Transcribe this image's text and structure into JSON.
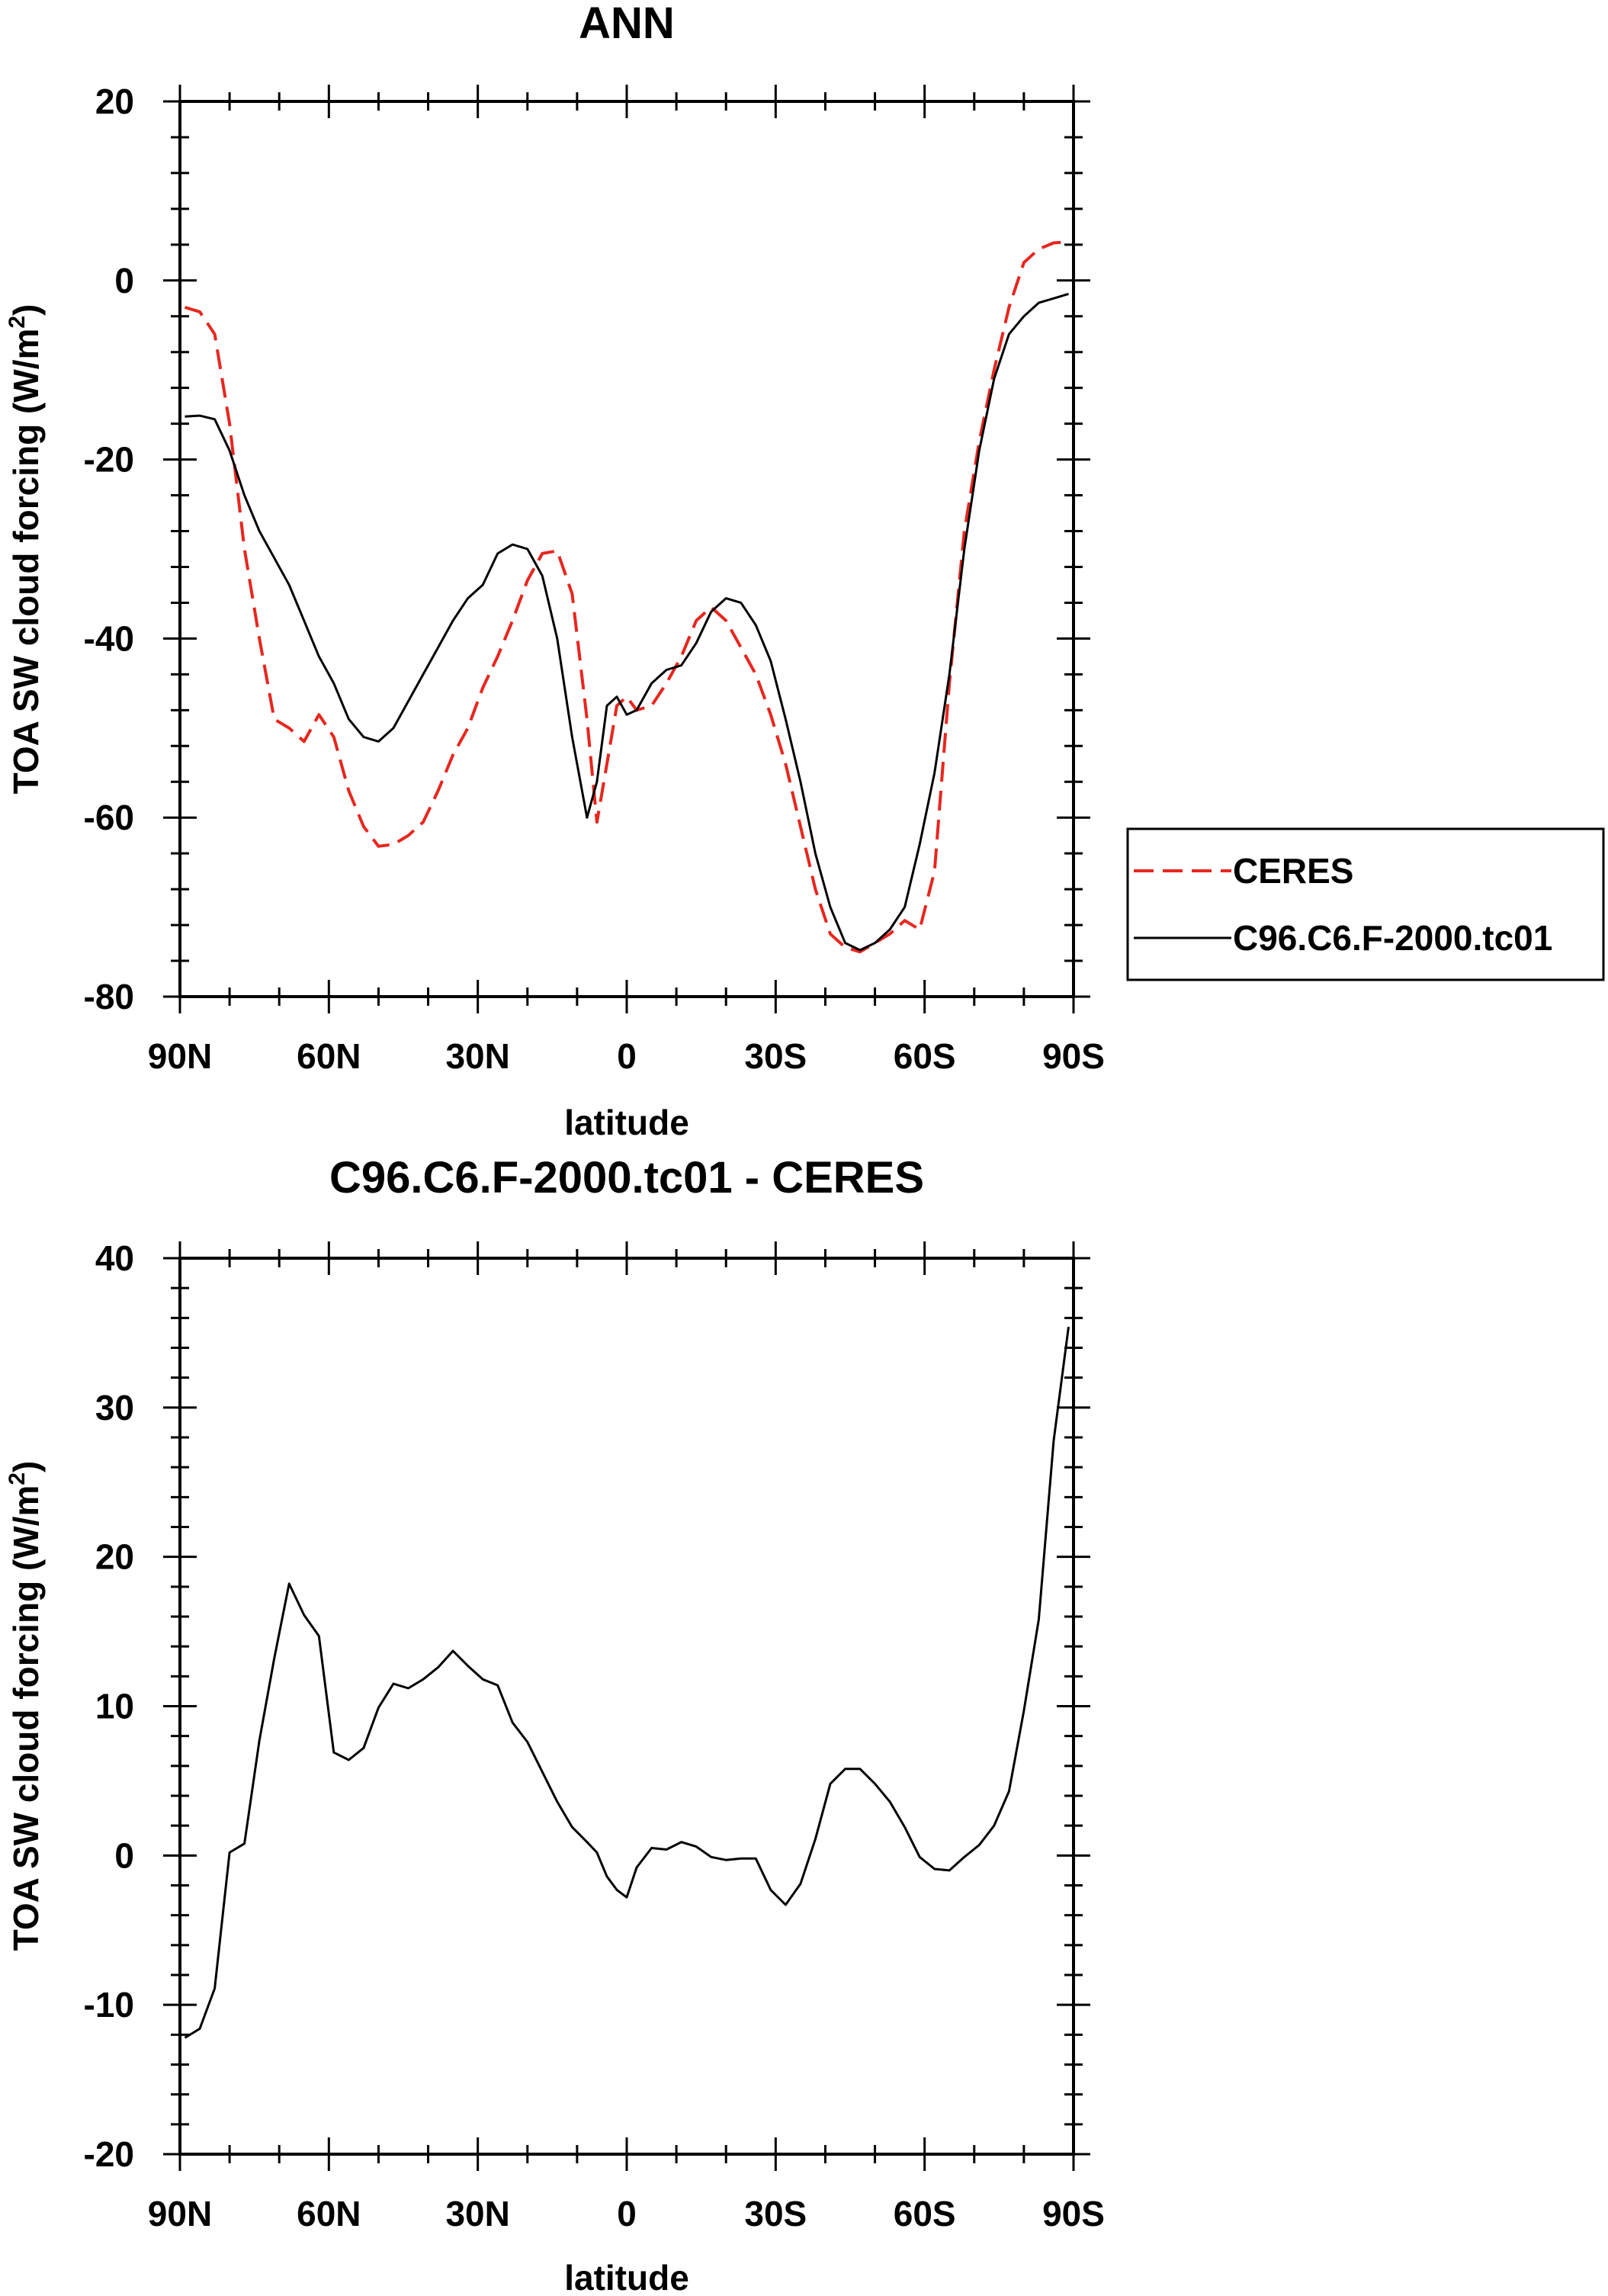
{
  "chart_data": [
    {
      "type": "line",
      "title": "ANN",
      "xlabel": "latitude",
      "ylabel": "TOA SW cloud forcing (W/m",
      "ylabel_superscript": "2",
      "ylabel_suffix": ")",
      "xlim": [
        -90,
        90
      ],
      "ylim": [
        -80,
        20
      ],
      "x_ticks": [
        -90,
        -60,
        -30,
        0,
        30,
        60,
        90
      ],
      "x_tick_labels": [
        "90N",
        "60N",
        "30N",
        "0",
        "30S",
        "60S",
        "90S"
      ],
      "y_ticks": [
        -80,
        -60,
        -40,
        -20,
        0,
        20
      ],
      "y_tick_labels": [
        "-80",
        "-60",
        "-40",
        "-20",
        "0",
        "20"
      ],
      "legend": {
        "placement": "right",
        "entries": [
          "CERES",
          "C96.C6.F-2000.tc01"
        ]
      },
      "series": [
        {
          "name": "CERES",
          "color": "#e8261e",
          "style": "dashed",
          "x": [
            -89,
            -86,
            -83,
            -80,
            -77,
            -74,
            -71,
            -68,
            -65,
            -62,
            -59,
            -56,
            -53,
            -50,
            -47,
            -44,
            -41,
            -38,
            -35,
            -32,
            -29,
            -26,
            -23,
            -20,
            -17,
            -14,
            -11,
            -8,
            -6,
            -4,
            -2,
            0,
            2,
            5,
            8,
            11,
            14,
            17,
            20,
            23,
            26,
            29,
            32,
            35,
            38,
            41,
            44,
            47,
            50,
            53,
            56,
            59,
            62,
            65,
            68,
            71,
            74,
            77,
            80,
            83,
            86,
            89
          ],
          "values": [
            -3,
            -3.5,
            -6,
            -16,
            -30,
            -40,
            -49,
            -50,
            -51.5,
            -48.5,
            -51,
            -57,
            -61,
            -63.2,
            -63,
            -62,
            -60.5,
            -57,
            -53,
            -50,
            -45.5,
            -42,
            -38,
            -33.5,
            -30.5,
            -30.2,
            -35,
            -49,
            -60.5,
            -54,
            -47.5,
            -46.5,
            -48,
            -47.5,
            -45,
            -42,
            -38,
            -36.5,
            -38,
            -41,
            -44,
            -48.5,
            -54,
            -61,
            -68,
            -73,
            -74.5,
            -75,
            -74,
            -73,
            -71.5,
            -72.5,
            -66,
            -45,
            -28,
            -18,
            -10,
            -3,
            2,
            3.5,
            4.2,
            4.3
          ]
        },
        {
          "name": "C96.C6.F-2000.tc01",
          "color": "#000000",
          "style": "solid",
          "x": [
            -89,
            -86,
            -83,
            -80,
            -77,
            -74,
            -71,
            -68,
            -65,
            -62,
            -59,
            -56,
            -53,
            -50,
            -47,
            -44,
            -41,
            -38,
            -35,
            -32,
            -29,
            -26,
            -23,
            -20,
            -17,
            -14,
            -11,
            -8,
            -6,
            -4,
            -2,
            0,
            2,
            5,
            8,
            11,
            14,
            17,
            20,
            23,
            26,
            29,
            32,
            35,
            38,
            41,
            44,
            47,
            50,
            53,
            56,
            59,
            62,
            65,
            68,
            71,
            74,
            77,
            80,
            83,
            86,
            89
          ],
          "values": [
            -15.2,
            -15.1,
            -15.5,
            -19,
            -24,
            -28,
            -31,
            -34,
            -38,
            -42,
            -45,
            -49,
            -51,
            -51.5,
            -50,
            -47,
            -44,
            -41,
            -38,
            -35.5,
            -34,
            -30.5,
            -29.5,
            -30,
            -33,
            -40,
            -51,
            -60,
            -56,
            -47.5,
            -46.5,
            -48.5,
            -48,
            -45,
            -43.5,
            -43,
            -40.5,
            -37,
            -35.5,
            -36,
            -38.5,
            -42.5,
            -49,
            -56,
            -64,
            -70,
            -74,
            -74.8,
            -74,
            -72.5,
            -70,
            -63,
            -55,
            -44,
            -30,
            -19,
            -11,
            -6,
            -4,
            -2.5,
            -2,
            -1.5
          ]
        }
      ]
    },
    {
      "type": "line",
      "title": "C96.C6.F-2000.tc01 - CERES",
      "xlabel": "latitude",
      "ylabel": "TOA SW cloud forcing (W/m",
      "ylabel_superscript": "2",
      "ylabel_suffix": ")",
      "xlim": [
        -90,
        90
      ],
      "ylim": [
        -20,
        40
      ],
      "x_ticks": [
        -90,
        -60,
        -30,
        0,
        30,
        60,
        90
      ],
      "x_tick_labels": [
        "90N",
        "60N",
        "30N",
        "0",
        "30S",
        "60S",
        "90S"
      ],
      "y_ticks": [
        -20,
        -10,
        0,
        10,
        20,
        30,
        40
      ],
      "y_tick_labels": [
        "-20",
        "-10",
        "0",
        "10",
        "20",
        "30",
        "40"
      ],
      "series": [
        {
          "name": "C96.C6.F-2000.tc01 - CERES",
          "color": "#000000",
          "style": "solid",
          "x": [
            -89,
            -86,
            -83,
            -80,
            -77,
            -74,
            -71,
            -68,
            -65,
            -62,
            -59,
            -56,
            -53,
            -50,
            -47,
            -44,
            -41,
            -38,
            -35,
            -32,
            -29,
            -26,
            -23,
            -20,
            -17,
            -14,
            -11,
            -8,
            -6,
            -4,
            -2,
            0,
            2,
            5,
            8,
            11,
            14,
            17,
            20,
            23,
            26,
            29,
            32,
            35,
            38,
            41,
            44,
            47,
            50,
            53,
            56,
            59,
            62,
            65,
            68,
            71,
            74,
            77,
            80,
            83,
            86,
            89
          ],
          "values": [
            -12.2,
            -11.6,
            -8.9,
            0.2,
            0.8,
            7.7,
            13.2,
            18.2,
            16.1,
            14.7,
            6.9,
            6.4,
            7.2,
            9.9,
            11.5,
            11.2,
            11.8,
            12.6,
            13.7,
            12.7,
            11.8,
            11.4,
            8.9,
            7.6,
            5.6,
            3.6,
            1.9,
            0.9,
            0.2,
            -1.4,
            -2.3,
            -2.8,
            -0.8,
            0.5,
            0.4,
            0.9,
            0.6,
            -0.1,
            -0.3,
            -0.2,
            -0.2,
            -2.3,
            -3.3,
            -1.9,
            1.1,
            4.8,
            5.8,
            5.8,
            4.8,
            3.6,
            1.9,
            -0.1,
            -0.9,
            -1,
            -0.1,
            0.7,
            2,
            4.3,
            9.7,
            15.8,
            27.8,
            35.4
          ]
        }
      ]
    }
  ]
}
